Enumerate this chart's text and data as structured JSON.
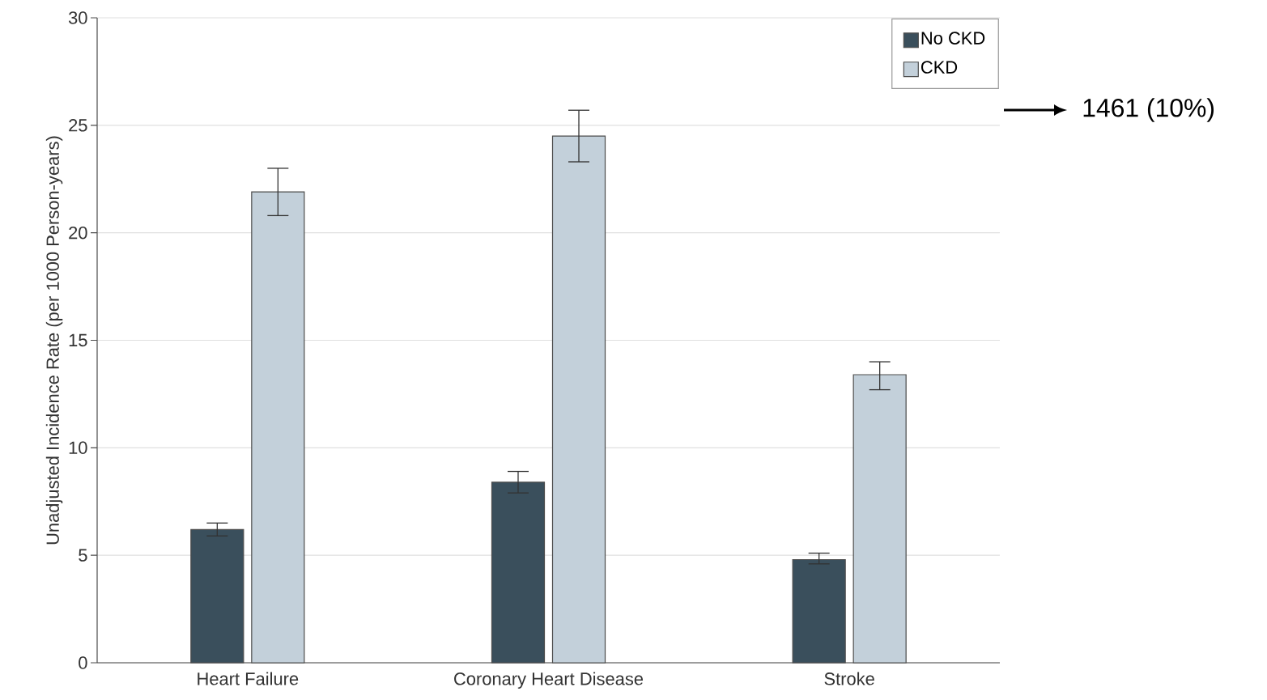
{
  "chart_data": {
    "type": "bar",
    "ylabel": "Unadjusted Incidence Rate (per 1000 Person-years)",
    "categories": [
      "Heart Failure",
      "Coronary Heart Disease",
      "Stroke"
    ],
    "series": [
      {
        "name": "No CKD",
        "color": "#3a4f5c",
        "values": [
          6.2,
          8.4,
          4.8
        ],
        "errors": [
          [
            5.9,
            6.5
          ],
          [
            7.9,
            8.9
          ],
          [
            4.6,
            5.1
          ]
        ]
      },
      {
        "name": "CKD",
        "color": "#c3d0da",
        "values": [
          21.9,
          24.5,
          13.4
        ],
        "errors": [
          [
            20.8,
            23.0
          ],
          [
            23.3,
            25.7
          ],
          [
            12.7,
            14.0
          ]
        ]
      }
    ],
    "ylim": [
      0,
      30
    ],
    "yticks": [
      0,
      5,
      10,
      15,
      20,
      25,
      30
    ],
    "grid": "y",
    "legend": "top right",
    "annotations": [
      "1461 (10%)"
    ]
  }
}
